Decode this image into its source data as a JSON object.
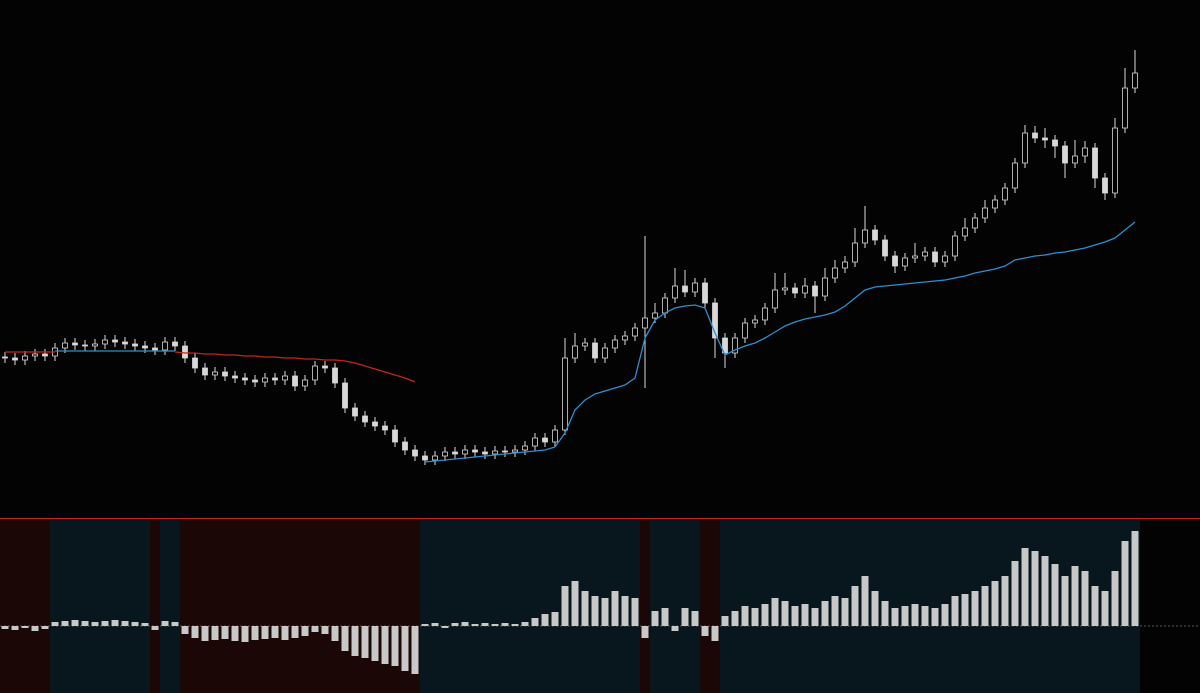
{
  "chart_data": [
    {
      "type": "candlestick",
      "candle_color": "#d8d8d8",
      "ylim": [
        0,
        518
      ],
      "open": [
        161,
        160,
        158,
        162,
        164,
        162,
        170,
        175,
        173,
        172,
        174,
        178,
        176,
        174,
        172,
        170,
        168,
        176,
        172,
        160,
        150,
        143,
        146,
        142,
        140,
        138,
        136,
        140,
        138,
        142,
        132,
        138,
        152,
        150,
        135,
        110,
        102,
        96,
        92,
        88,
        76,
        68,
        62,
        58,
        62,
        66,
        64,
        68,
        66,
        64,
        67,
        66,
        68,
        72,
        80,
        76,
        88,
        160,
        172,
        175,
        160,
        170,
        178,
        182,
        190,
        200,
        205,
        220,
        232,
        226,
        235,
        215,
        180,
        165,
        180,
        195,
        198,
        210,
        228,
        230,
        225,
        232,
        222,
        240,
        250,
        256,
        275,
        288,
        278,
        262,
        252,
        260,
        262,
        266,
        256,
        262,
        282,
        290,
        300,
        310,
        318,
        330,
        355,
        385,
        380,
        378,
        372,
        355,
        362,
        370,
        340,
        325,
        390,
        430
      ],
      "high": [
        166,
        165,
        167,
        169,
        169,
        175,
        180,
        180,
        178,
        179,
        183,
        183,
        181,
        179,
        177,
        175,
        181,
        181,
        177,
        165,
        155,
        151,
        151,
        147,
        145,
        143,
        145,
        145,
        147,
        147,
        143,
        157,
        157,
        155,
        140,
        115,
        107,
        101,
        97,
        93,
        81,
        73,
        67,
        67,
        71,
        71,
        73,
        73,
        71,
        72,
        72,
        73,
        77,
        85,
        85,
        93,
        180,
        185,
        180,
        180,
        175,
        183,
        187,
        195,
        282,
        215,
        225,
        250,
        248,
        240,
        240,
        220,
        185,
        185,
        200,
        203,
        215,
        245,
        245,
        235,
        240,
        237,
        250,
        258,
        262,
        290,
        312,
        293,
        283,
        267,
        265,
        275,
        271,
        271,
        267,
        287,
        300,
        305,
        318,
        323,
        335,
        360,
        393,
        392,
        390,
        383,
        377,
        378,
        377,
        375,
        345,
        400,
        450,
        468
      ],
      "low": [
        155,
        153,
        153,
        157,
        157,
        157,
        165,
        168,
        167,
        167,
        169,
        171,
        169,
        167,
        165,
        163,
        163,
        167,
        155,
        145,
        138,
        138,
        137,
        135,
        133,
        131,
        131,
        133,
        133,
        127,
        127,
        133,
        145,
        130,
        105,
        97,
        91,
        87,
        83,
        71,
        63,
        57,
        53,
        53,
        57,
        59,
        59,
        61,
        59,
        59,
        61,
        61,
        63,
        67,
        71,
        71,
        83,
        155,
        167,
        155,
        155,
        165,
        173,
        177,
        130,
        195,
        200,
        215,
        221,
        221,
        210,
        160,
        150,
        160,
        175,
        190,
        193,
        205,
        223,
        220,
        220,
        205,
        217,
        235,
        245,
        251,
        270,
        273,
        257,
        245,
        247,
        255,
        257,
        251,
        251,
        257,
        277,
        285,
        295,
        305,
        313,
        325,
        350,
        375,
        370,
        360,
        340,
        350,
        355,
        330,
        318,
        320,
        385,
        425
      ],
      "close": [
        160,
        158,
        162,
        164,
        162,
        170,
        175,
        173,
        172,
        174,
        178,
        176,
        174,
        172,
        170,
        168,
        176,
        172,
        160,
        150,
        143,
        146,
        142,
        140,
        138,
        136,
        140,
        138,
        142,
        132,
        138,
        152,
        150,
        135,
        110,
        102,
        96,
        92,
        88,
        76,
        68,
        62,
        58,
        62,
        66,
        64,
        68,
        66,
        64,
        67,
        66,
        68,
        72,
        80,
        76,
        88,
        160,
        172,
        175,
        160,
        170,
        178,
        182,
        190,
        200,
        205,
        220,
        232,
        226,
        235,
        215,
        180,
        165,
        180,
        195,
        198,
        210,
        228,
        230,
        225,
        232,
        222,
        240,
        250,
        256,
        275,
        288,
        278,
        262,
        252,
        260,
        262,
        266,
        256,
        262,
        282,
        290,
        300,
        310,
        318,
        330,
        355,
        385,
        380,
        378,
        372,
        355,
        362,
        370,
        340,
        325,
        390,
        430,
        445
      ],
      "series": [
        {
          "color": "#c0261a",
          "values": [
            166,
            166,
            166,
            166,
            166,
            166,
            null,
            null,
            null,
            null,
            null,
            null,
            null,
            null,
            null,
            null,
            null,
            166,
            165,
            165,
            164,
            164,
            163,
            163,
            162,
            162,
            161,
            161,
            160,
            160,
            159,
            159,
            158,
            158,
            157,
            155,
            152,
            149,
            146,
            143,
            140,
            136,
            null,
            null,
            null,
            null,
            null,
            null,
            null,
            null,
            null,
            null,
            null,
            null,
            null,
            null,
            null,
            null,
            null,
            null,
            null,
            null,
            null,
            null,
            null,
            null,
            null,
            null,
            null,
            null,
            null,
            null,
            null,
            null,
            null,
            null,
            null,
            null,
            null,
            null,
            null,
            null,
            null,
            null,
            null,
            null,
            null,
            null,
            null,
            null,
            null,
            null,
            null,
            null,
            null,
            null,
            null,
            null,
            null,
            null,
            null,
            null,
            null,
            null,
            null,
            null,
            null,
            null,
            null,
            null,
            null,
            null,
            null,
            null
          ]
        },
        {
          "color": "#2a8fd0",
          "values": [
            null,
            null,
            null,
            null,
            null,
            167,
            167,
            167,
            167,
            167,
            167,
            167,
            167,
            167,
            167,
            167,
            167,
            167,
            null,
            null,
            null,
            null,
            null,
            null,
            null,
            null,
            null,
            null,
            null,
            null,
            null,
            null,
            null,
            null,
            null,
            null,
            null,
            null,
            null,
            null,
            null,
            null,
            56,
            57,
            58,
            59,
            60,
            61,
            62,
            63,
            64,
            65,
            66,
            67,
            68,
            71,
            85,
            108,
            118,
            124,
            127,
            130,
            133,
            140,
            180,
            198,
            205,
            210,
            212,
            213,
            210,
            185,
            163,
            168,
            172,
            175,
            180,
            186,
            192,
            196,
            199,
            201,
            203,
            206,
            212,
            220,
            228,
            231,
            232,
            233,
            234,
            235,
            236,
            237,
            238,
            240,
            242,
            245,
            247,
            249,
            252,
            258,
            260,
            262,
            263,
            265,
            266,
            268,
            270,
            273,
            276,
            280,
            288,
            296
          ]
        }
      ]
    },
    {
      "type": "bar",
      "color": "#c8c8c8",
      "ylim": [
        -67,
        108
      ],
      "values": [
        -3,
        -4,
        -2,
        -5,
        -3,
        4,
        5,
        6,
        5,
        4,
        5,
        6,
        5,
        4,
        3,
        -4,
        5,
        4,
        -8,
        -12,
        -15,
        -14,
        -13,
        -15,
        -16,
        -14,
        -13,
        -12,
        -14,
        -12,
        -10,
        -6,
        -8,
        -15,
        -25,
        -30,
        -32,
        -35,
        -38,
        -40,
        -45,
        -48,
        2,
        3,
        -2,
        3,
        4,
        2,
        3,
        2,
        3,
        2,
        4,
        8,
        12,
        14,
        40,
        45,
        35,
        30,
        28,
        35,
        30,
        28,
        -12,
        15,
        18,
        -5,
        18,
        15,
        -10,
        -15,
        10,
        15,
        20,
        18,
        22,
        28,
        25,
        20,
        22,
        18,
        25,
        30,
        28,
        40,
        50,
        35,
        25,
        18,
        20,
        22,
        20,
        18,
        22,
        30,
        32,
        35,
        40,
        45,
        50,
        65,
        78,
        75,
        70,
        62,
        50,
        60,
        55,
        40,
        35,
        55,
        85,
        95
      ],
      "bands": [
        {
          "from": 0,
          "to": 5,
          "color": "#1c0707"
        },
        {
          "from": 5,
          "to": 15,
          "color": "#08161d"
        },
        {
          "from": 15,
          "to": 16,
          "color": "#1c0707"
        },
        {
          "from": 16,
          "to": 18,
          "color": "#08161d"
        },
        {
          "from": 18,
          "to": 42,
          "color": "#1c0707"
        },
        {
          "from": 42,
          "to": 64,
          "color": "#08161d"
        },
        {
          "from": 64,
          "to": 65,
          "color": "#1c0707"
        },
        {
          "from": 65,
          "to": 70,
          "color": "#08161d"
        },
        {
          "from": 70,
          "to": 72,
          "color": "#1c0707"
        },
        {
          "from": 72,
          "to": 114,
          "color": "#08161d"
        }
      ]
    }
  ]
}
